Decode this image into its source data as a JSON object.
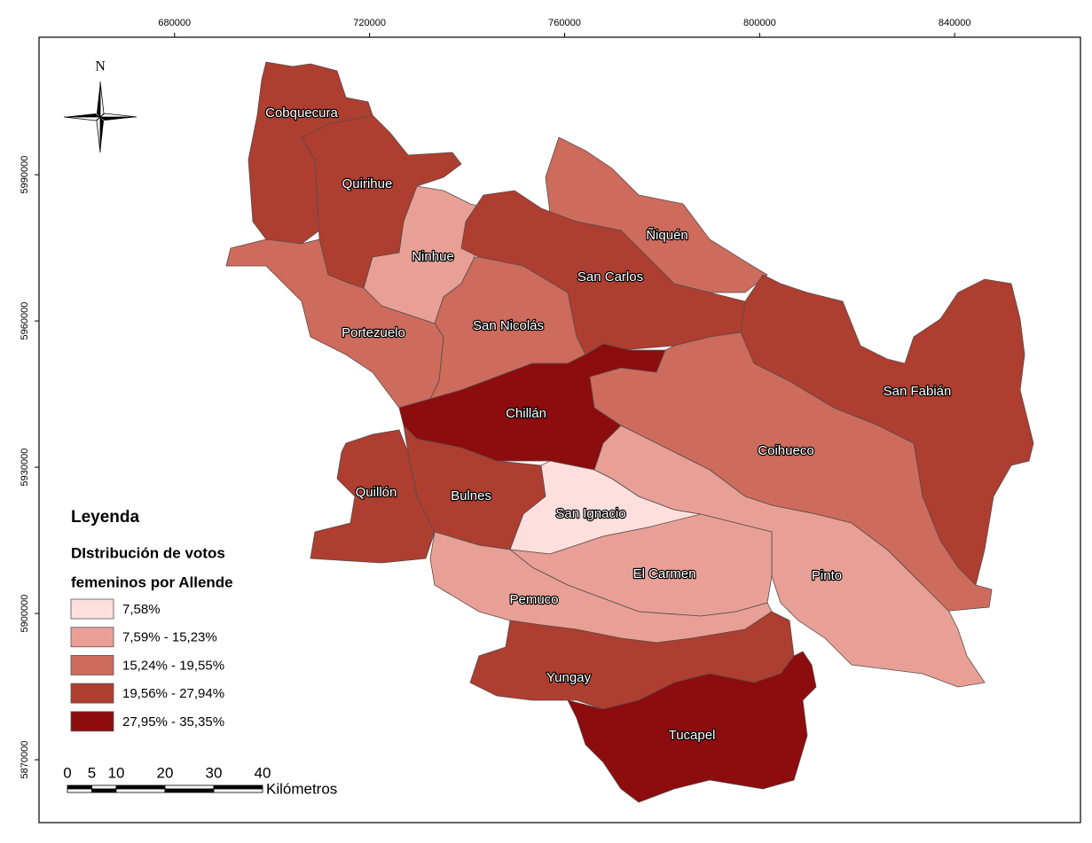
{
  "map": {
    "xticks": [
      680000,
      720000,
      760000,
      800000,
      840000
    ],
    "xlim": [
      652200,
      865800
    ],
    "yticks": [
      5990000,
      5960000,
      5930000,
      5900000,
      5870000
    ],
    "ylim": [
      5857100,
      6018200
    ],
    "north_label": "N",
    "regions": [
      {
        "name": "Cobquecura",
        "color": "#ae3e30"
      },
      {
        "name": "Quirihue",
        "color": "#ae3e30"
      },
      {
        "name": "Ninhue",
        "color": "#e8a096"
      },
      {
        "name": "Ñiquén",
        "color": "#cd6b5d"
      },
      {
        "name": "San Carlos",
        "color": "#ae3e30"
      },
      {
        "name": "Portezuelo",
        "color": "#cd6b5d"
      },
      {
        "name": "San Nicolás",
        "color": "#cd6b5d"
      },
      {
        "name": "Chillán",
        "color": "#8d0c0e"
      },
      {
        "name": "San Fabián",
        "color": "#ae3e30"
      },
      {
        "name": "Coihueco",
        "color": "#cd6b5d"
      },
      {
        "name": "Quillón",
        "color": "#ae3e30"
      },
      {
        "name": "Bulnes",
        "color": "#ae3e30"
      },
      {
        "name": "San Ignacio",
        "color": "#fde0de"
      },
      {
        "name": "Pinto",
        "color": "#e8a096"
      },
      {
        "name": "El Carmen",
        "color": "#e8a096"
      },
      {
        "name": "Pemuco",
        "color": "#e8a096"
      },
      {
        "name": "Yungay",
        "color": "#ae3e30"
      },
      {
        "name": "Tucapel",
        "color": "#8d0c0e"
      }
    ],
    "legend": {
      "title": "Leyenda",
      "subtitle_lines": [
        "DIstribución de votos",
        "femeninos por Allende"
      ],
      "classes": [
        {
          "label": "7,58%",
          "color": "#fde0de"
        },
        {
          "label": "7,59% - 15,23%",
          "color": "#e8a096"
        },
        {
          "label": "15,24% - 19,55%",
          "color": "#cd6b5d"
        },
        {
          "label": "19,56% - 27,94%",
          "color": "#ae3e30"
        },
        {
          "label": "27,95% - 35,35%",
          "color": "#8d0c0e"
        }
      ]
    },
    "scale_bar": {
      "ticks": [
        0,
        5,
        10,
        20,
        30,
        40
      ],
      "unit": "Kilómetros"
    }
  }
}
